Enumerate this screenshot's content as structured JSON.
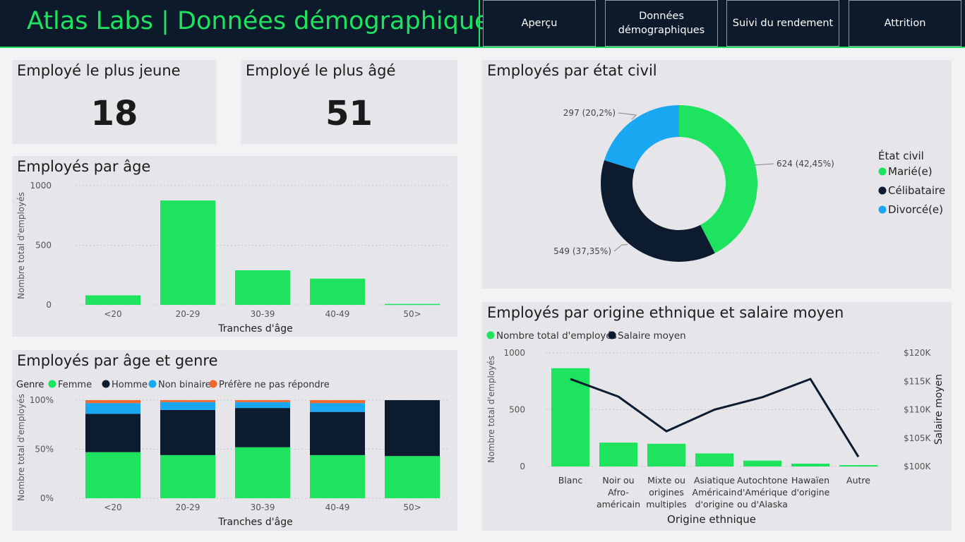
{
  "header": {
    "title": "Atlas Labs | Données démographiques",
    "nav": [
      {
        "label": "Aperçu"
      },
      {
        "label": "Données démographiques"
      },
      {
        "label": "Suivi du rendement"
      },
      {
        "label": "Attrition"
      }
    ]
  },
  "kpis": {
    "youngest": {
      "label": "Employé le plus jeune",
      "value": "18"
    },
    "oldest": {
      "label": "Employé le plus âgé",
      "value": "51"
    }
  },
  "colors": {
    "green": "#1de35f",
    "navy": "#0d1b2e",
    "blue": "#1aa7f2",
    "orange": "#f0682a"
  },
  "chart_data": [
    {
      "id": "age",
      "type": "bar",
      "title": "Employés par âge",
      "xlabel": "Tranches d'âge",
      "ylabel": "Nombre total d'employés",
      "categories": [
        "<20",
        "20-29",
        "30-39",
        "40-49",
        "50>"
      ],
      "values": [
        80,
        875,
        290,
        220,
        8
      ],
      "ylim": [
        0,
        1000
      ],
      "yticks": [
        "0",
        "500",
        "1000"
      ]
    },
    {
      "id": "age_gender",
      "type": "bar",
      "stacked": "100%",
      "title": "Employés par âge et genre",
      "legend_title": "Genre",
      "xlabel": "Tranches d'âge",
      "ylabel": "Nombre total d'employés",
      "categories": [
        "<20",
        "20-29",
        "30-39",
        "40-49",
        "50>"
      ],
      "yticks": [
        "0%",
        "50%",
        "100%"
      ],
      "series": [
        {
          "name": "Femme",
          "values": [
            47,
            44,
            52,
            44,
            43
          ]
        },
        {
          "name": "Homme",
          "values": [
            39,
            46,
            40,
            44,
            57
          ]
        },
        {
          "name": "Non binaire",
          "values": [
            11,
            8,
            6,
            9,
            0
          ]
        },
        {
          "name": "Préfère ne pas répondre",
          "values": [
            3,
            2,
            2,
            3,
            0
          ]
        }
      ]
    },
    {
      "id": "civil",
      "type": "pie",
      "donut": true,
      "title": "Employés par état civil",
      "legend_title": "État civil",
      "slices": [
        {
          "name": "Marié(e)",
          "value": 624,
          "label": "624 (42,45%)"
        },
        {
          "name": "Célibataire",
          "value": 549,
          "label": "549 (37,35%)"
        },
        {
          "name": "Divorcé(e)",
          "value": 297,
          "label": "297 (20,2%)"
        }
      ]
    },
    {
      "id": "ethnicity",
      "type": "bar",
      "combo": "line",
      "title": "Employés par origine ethnique et salaire moyen",
      "xlabel": "Origine ethnique",
      "ylabel": "Nombre total d'employés",
      "y2label": "Salaire moyen",
      "categories": [
        [
          "Blanc"
        ],
        [
          "Noir ou",
          "Afro-",
          "américain"
        ],
        [
          "Mixte ou",
          "origines",
          "multiples"
        ],
        [
          "Asiatique",
          "Américain",
          "d'origine"
        ],
        [
          "Autochtone",
          "d'Amérique",
          "ou d'Alaska"
        ],
        [
          "Hawaïen",
          "d'origine"
        ],
        [
          "Autre"
        ]
      ],
      "series": [
        {
          "name": "Nombre total d'employés",
          "values": [
            865,
            210,
            200,
            115,
            52,
            25,
            12
          ],
          "axis": "left"
        },
        {
          "name": "Salaire moyen",
          "values": [
            115400,
            112300,
            106200,
            110000,
            112200,
            115400,
            101700
          ],
          "axis": "right"
        }
      ],
      "ylim": [
        0,
        1000
      ],
      "y2lim": [
        100000,
        120000
      ],
      "yticks": [
        "0",
        "500",
        "1000"
      ],
      "y2ticks": [
        "$100K",
        "$105K",
        "$110K",
        "$115K",
        "$120K"
      ]
    }
  ]
}
